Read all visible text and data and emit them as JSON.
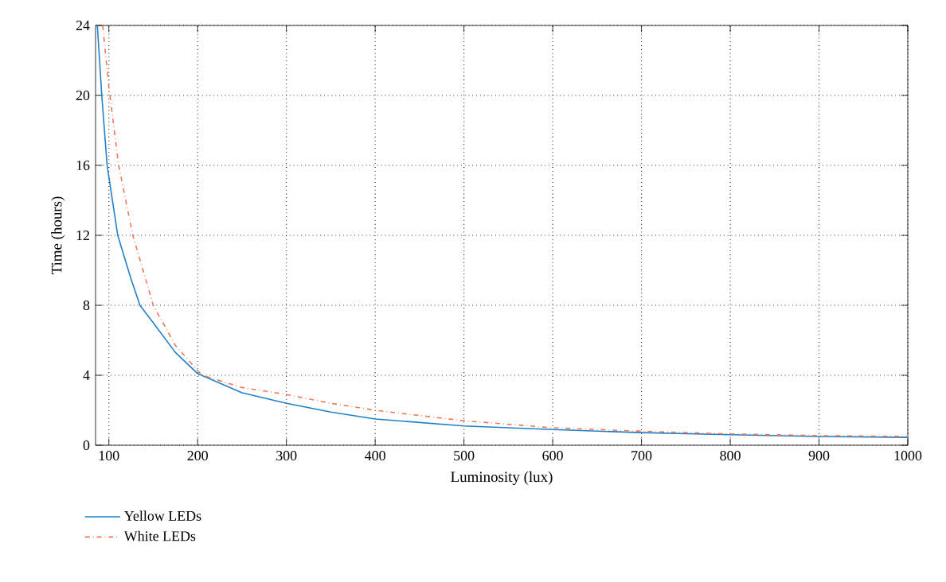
{
  "chart_data": {
    "type": "line",
    "xlabel": "Luminosity (lux)",
    "ylabel": "Time (hours)",
    "xlim": [
      85,
      1000
    ],
    "xticks": [
      100,
      200,
      300,
      400,
      500,
      600,
      700,
      800,
      900,
      1000
    ],
    "ylim": [
      0,
      24
    ],
    "yticks": [
      0,
      4,
      8,
      12,
      16,
      20,
      24
    ],
    "grid": true,
    "legend": "bottom left",
    "marker": "none",
    "series": [
      {
        "name": "Yellow LEDs",
        "color": "#1f80c8",
        "line_style": "solid",
        "x": [
          87,
          92,
          98,
          110,
          125,
          135,
          150,
          175,
          200,
          250,
          300,
          350,
          400,
          500,
          600,
          700,
          800,
          900,
          1000
        ],
        "values": [
          24,
          20,
          16,
          12,
          9.5,
          8,
          7,
          5.3,
          4.1,
          3.0,
          2.4,
          1.9,
          1.5,
          1.1,
          0.9,
          0.72,
          0.6,
          0.5,
          0.45
        ]
      },
      {
        "name": "White LEDs",
        "color": "#f07858",
        "line_style": "dashdot",
        "x": [
          93,
          100,
          111,
          127,
          150,
          175,
          205,
          250,
          300,
          350,
          400,
          500,
          600,
          700,
          800,
          900,
          1000
        ],
        "values": [
          24,
          20.5,
          16,
          12,
          8,
          5.7,
          4,
          3.3,
          2.9,
          2.4,
          2.0,
          1.4,
          1.0,
          0.8,
          0.65,
          0.55,
          0.5
        ]
      }
    ]
  }
}
